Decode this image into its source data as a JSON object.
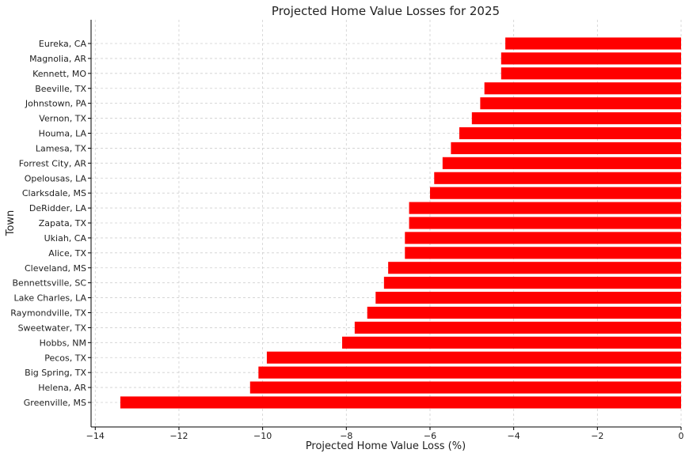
{
  "chart_data": {
    "type": "bar",
    "orientation": "horizontal",
    "title": "Projected Home Value Losses for 2025",
    "xlabel": "Projected Home Value Loss (%)",
    "ylabel": "Town",
    "categories": [
      "Eureka, CA",
      "Magnolia, AR",
      "Kennett, MO",
      "Beeville, TX",
      "Johnstown, PA",
      "Vernon, TX",
      "Houma, LA",
      "Lamesa, TX",
      "Forrest City, AR",
      "Opelousas, LA",
      "Clarksdale, MS",
      "DeRidder, LA",
      "Zapata, TX",
      "Ukiah, CA",
      "Alice, TX",
      "Cleveland, MS",
      "Bennettsville, SC",
      "Lake Charles, LA",
      "Raymondville, TX",
      "Sweetwater, TX",
      "Hobbs, NM",
      "Pecos, TX",
      "Big Spring, TX",
      "Helena, AR",
      "Greenville, MS"
    ],
    "values": [
      -4.2,
      -4.3,
      -4.3,
      -4.7,
      -4.8,
      -5.0,
      -5.3,
      -5.5,
      -5.7,
      -5.9,
      -6.0,
      -6.5,
      -6.5,
      -6.6,
      -6.6,
      -7.0,
      -7.1,
      -7.3,
      -7.5,
      -7.8,
      -8.1,
      -9.9,
      -10.1,
      -10.3,
      -13.4
    ],
    "xlim": [
      -14.1,
      0
    ],
    "xticks": [
      -14,
      -12,
      -10,
      -8,
      -6,
      -4,
      -2,
      0
    ],
    "xtick_labels": [
      "−14",
      "−12",
      "−10",
      "−8",
      "−6",
      "−4",
      "−2",
      "0"
    ],
    "grid": true,
    "bar_color": "#ff0000"
  }
}
